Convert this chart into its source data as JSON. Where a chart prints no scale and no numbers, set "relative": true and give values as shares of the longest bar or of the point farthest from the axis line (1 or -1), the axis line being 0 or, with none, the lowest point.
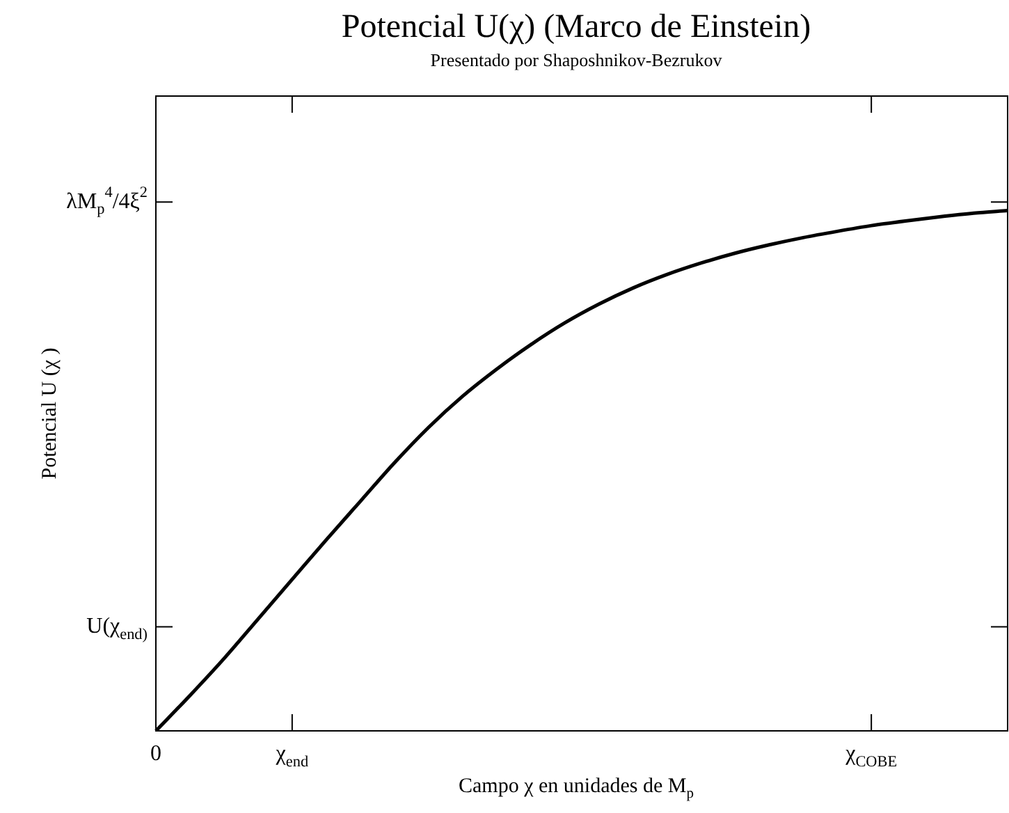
{
  "chart_data": {
    "type": "line",
    "title": "Potencial U(χ) (Marco de Einstein)",
    "subtitle": "Presentado por Shaposhnikov-Bezrukov",
    "xlabel": "Campo χ en unidades de M$_{p}$",
    "ylabel": "Potencial U (χ )",
    "categories": [
      "0",
      null,
      null,
      null,
      "χ$_{end}$",
      null,
      null,
      null,
      null,
      null,
      null,
      null,
      null,
      null,
      null,
      null,
      null,
      null,
      null,
      null,
      null,
      "χ$_{COBE}$",
      null,
      null,
      null,
      null
    ],
    "relative": true,
    "series": [
      {
        "color": "#000000",
        "values": [
          0,
          0.068,
          0.139,
          0.215,
          0.291,
          0.367,
          0.441,
          0.515,
          0.583,
          0.643,
          0.695,
          0.742,
          0.784,
          0.82,
          0.851,
          0.877,
          0.899,
          0.918,
          0.934,
          0.948,
          0.96,
          0.971,
          0.98,
          0.988,
          0.995,
          1
        ]
      }
    ],
    "annotations": [
      "U(χ$_{end)}$",
      "λM$_{p}$$^{4}$/4ξ$^{2}$"
    ],
    "marker": "none"
  }
}
